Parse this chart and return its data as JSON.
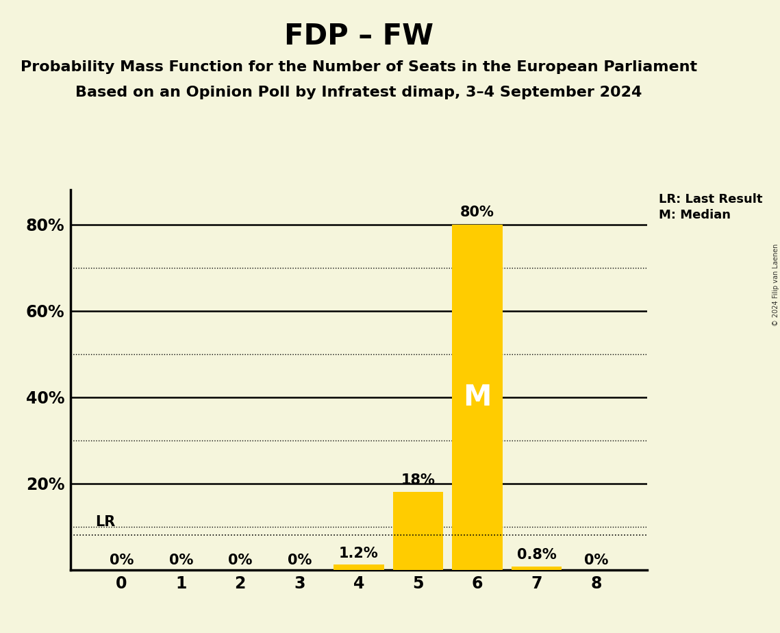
{
  "title": "FDP – FW",
  "subtitle1": "Probability Mass Function for the Number of Seats in the European Parliament",
  "subtitle2": "Based on an Opinion Poll by Infratest dimap, 3–4 September 2024",
  "copyright": "© 2024 Filip van Laenen",
  "categories": [
    0,
    1,
    2,
    3,
    4,
    5,
    6,
    7,
    8
  ],
  "values": [
    0.0,
    0.0,
    0.0,
    0.0,
    1.2,
    18.0,
    80.0,
    0.8,
    0.0
  ],
  "labels": [
    "0%",
    "0%",
    "0%",
    "0%",
    "1.2%",
    "18%",
    "80%",
    "0.8%",
    "0%"
  ],
  "bar_color": "#FFCC00",
  "median_seat": 6,
  "lr_seat": 6,
  "lr_value": 8.0,
  "lr_label": "LR",
  "median_label": "M",
  "legend_lr": "LR: Last Result",
  "legend_m": "M: Median",
  "background_color": "#F5F5DC",
  "ylim": [
    0,
    88
  ],
  "yticks": [
    0,
    20,
    40,
    60,
    80
  ],
  "yticklabels": [
    "",
    "20%",
    "40%",
    "60%",
    "80%"
  ],
  "dotted_yticks": [
    10,
    30,
    50,
    70
  ],
  "title_fontsize": 30,
  "subtitle_fontsize": 16,
  "label_fontsize": 15,
  "axis_fontsize": 17
}
